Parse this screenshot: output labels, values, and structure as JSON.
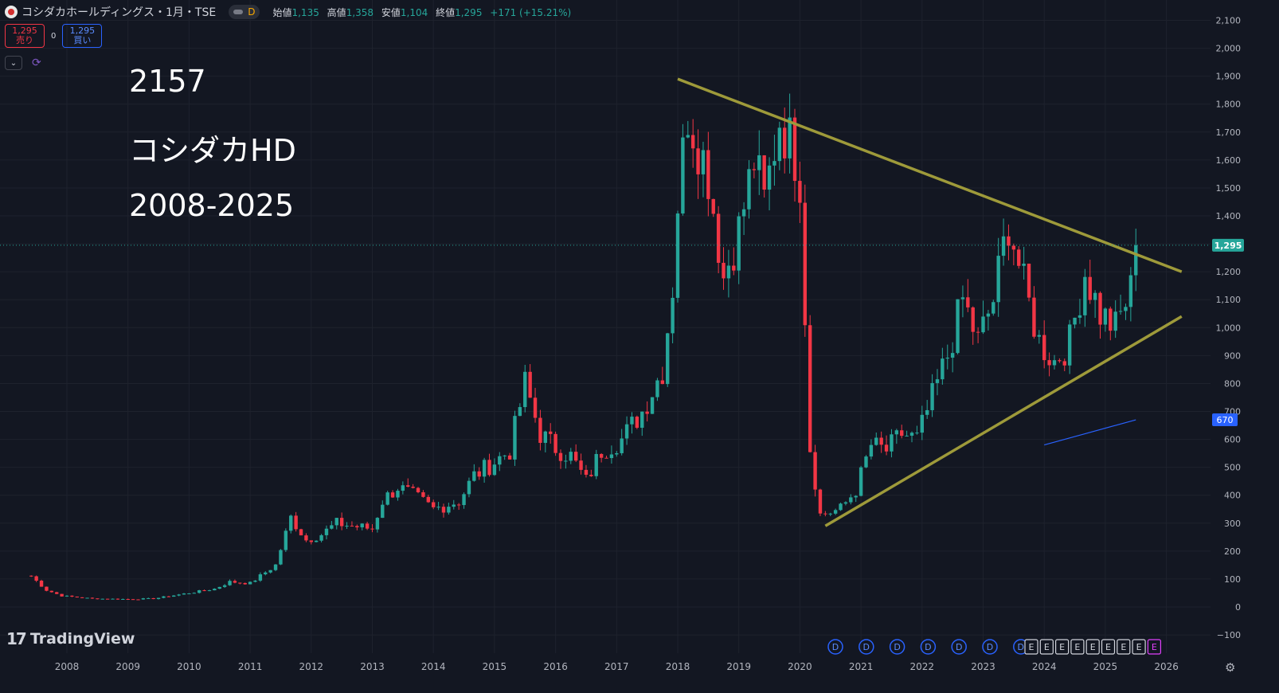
{
  "header": {
    "symbol_title": "コシダカホールディングス・1月・TSE",
    "interval_badge": "D",
    "open_label": "始値",
    "open": "1,135",
    "high_label": "高値",
    "high": "1,358",
    "low_label": "安値",
    "low": "1,104",
    "close_label": "終値",
    "close": "1,295",
    "change": "+171 (+15.21%)"
  },
  "trade": {
    "sell_price": "1,295",
    "sell_label": "売り",
    "spread": "0",
    "buy_price": "1,295",
    "buy_label": "買い"
  },
  "annotations": {
    "code": "2157",
    "name": "コシダカHD",
    "range": "2008-2025"
  },
  "branding": {
    "logo_text": "TradingView"
  },
  "icons": {
    "settings": "gear-icon",
    "collapse": "chevron-down-icon",
    "refresh": "refresh-icon"
  },
  "colors": {
    "up": "#26a69a",
    "down": "#f23645",
    "trendline": "#9e9a3a",
    "ma": "#2962ff",
    "background": "#131722"
  },
  "chart_data": {
    "type": "candlestick",
    "interval": "1 month",
    "y_axis": {
      "ticks": [
        "2,100",
        "2,000",
        "1,900",
        "1,800",
        "1,700",
        "1,600",
        "1,500",
        "1,400",
        "1,300",
        "1,200",
        "1,100",
        "1,000",
        "900",
        "800",
        "700",
        "600",
        "500",
        "400",
        "300",
        "200",
        "100",
        "0",
        "−100"
      ],
      "range": [
        -100,
        2100
      ]
    },
    "x_axis": {
      "ticks": [
        "2008",
        "2009",
        "2010",
        "2011",
        "2012",
        "2013",
        "2014",
        "2015",
        "2016",
        "2017",
        "2018",
        "2019",
        "2020",
        "2021",
        "2022",
        "2023",
        "2024",
        "2025",
        "2026"
      ],
      "range": [
        "2007-06",
        "2026-12"
      ]
    },
    "last_price_label": "1,295",
    "ma_label": "670",
    "series": [
      {
        "kind": "close_anchors",
        "points": [
          [
            "2007-06",
            110
          ],
          [
            "2007-09",
            60
          ],
          [
            "2007-12",
            40
          ],
          [
            "2008-06",
            30
          ],
          [
            "2009-01",
            28
          ],
          [
            "2009-06",
            30
          ],
          [
            "2010-01",
            50
          ],
          [
            "2010-06",
            65
          ],
          [
            "2010-09",
            90
          ],
          [
            "2011-01",
            85
          ],
          [
            "2011-06",
            150
          ],
          [
            "2011-09",
            320
          ],
          [
            "2011-12",
            240
          ],
          [
            "2012-03",
            260
          ],
          [
            "2012-06",
            300
          ],
          [
            "2012-09",
            290
          ],
          [
            "2013-01",
            280
          ],
          [
            "2013-03",
            380
          ],
          [
            "2013-06",
            430
          ],
          [
            "2013-09",
            400
          ],
          [
            "2014-01",
            350
          ],
          [
            "2014-06",
            380
          ],
          [
            "2014-09",
            470
          ],
          [
            "2015-01",
            520
          ],
          [
            "2015-04",
            560
          ],
          [
            "2015-07",
            800
          ],
          [
            "2015-10",
            620
          ],
          [
            "2016-01",
            570
          ],
          [
            "2016-04",
            540
          ],
          [
            "2016-07",
            450
          ],
          [
            "2016-10",
            560
          ],
          [
            "2017-02",
            600
          ],
          [
            "2017-06",
            700
          ],
          [
            "2017-10",
            850
          ],
          [
            "2017-12",
            1150
          ],
          [
            "2018-01",
            1450
          ],
          [
            "2018-03",
            1780
          ],
          [
            "2018-07",
            1550
          ],
          [
            "2018-10",
            1180
          ],
          [
            "2019-01",
            1350
          ],
          [
            "2019-04",
            1600
          ],
          [
            "2019-06",
            1450
          ],
          [
            "2019-09",
            1750
          ],
          [
            "2019-12",
            1620
          ],
          [
            "2020-01",
            1540
          ],
          [
            "2020-03",
            570
          ],
          [
            "2020-05",
            330
          ],
          [
            "2020-09",
            350
          ],
          [
            "2020-12",
            420
          ],
          [
            "2021-03",
            580
          ],
          [
            "2021-06",
            560
          ],
          [
            "2021-09",
            620
          ],
          [
            "2021-12",
            600
          ],
          [
            "2022-03",
            750
          ],
          [
            "2022-06",
            900
          ],
          [
            "2022-09",
            1100
          ],
          [
            "2022-12",
            950
          ],
          [
            "2023-03",
            1100
          ],
          [
            "2023-06",
            1380
          ],
          [
            "2023-09",
            1150
          ],
          [
            "2023-12",
            950
          ],
          [
            "2024-03",
            880
          ],
          [
            "2024-06",
            950
          ],
          [
            "2024-09",
            1200
          ],
          [
            "2024-12",
            1050
          ],
          [
            "2025-03",
            1000
          ],
          [
            "2025-06",
            1135
          ],
          [
            "2025-07",
            1295
          ]
        ]
      },
      {
        "kind": "upper_trendline",
        "points": [
          [
            "2018-01",
            1890
          ],
          [
            "2026-04",
            1200
          ]
        ]
      },
      {
        "kind": "lower_trendline",
        "points": [
          [
            "2020-06",
            290
          ],
          [
            "2026-04",
            1040
          ]
        ]
      },
      {
        "kind": "moving_average",
        "points": [
          [
            "2024-01",
            580
          ],
          [
            "2024-09",
            620
          ],
          [
            "2025-03",
            650
          ],
          [
            "2025-07",
            670
          ]
        ]
      }
    ],
    "event_markers": {
      "dividends": [
        "D",
        "D",
        "D",
        "D",
        "D",
        "D",
        "D"
      ],
      "earnings": [
        "E",
        "E",
        "E",
        "E",
        "E",
        "E",
        "E",
        "E",
        "E"
      ]
    }
  }
}
